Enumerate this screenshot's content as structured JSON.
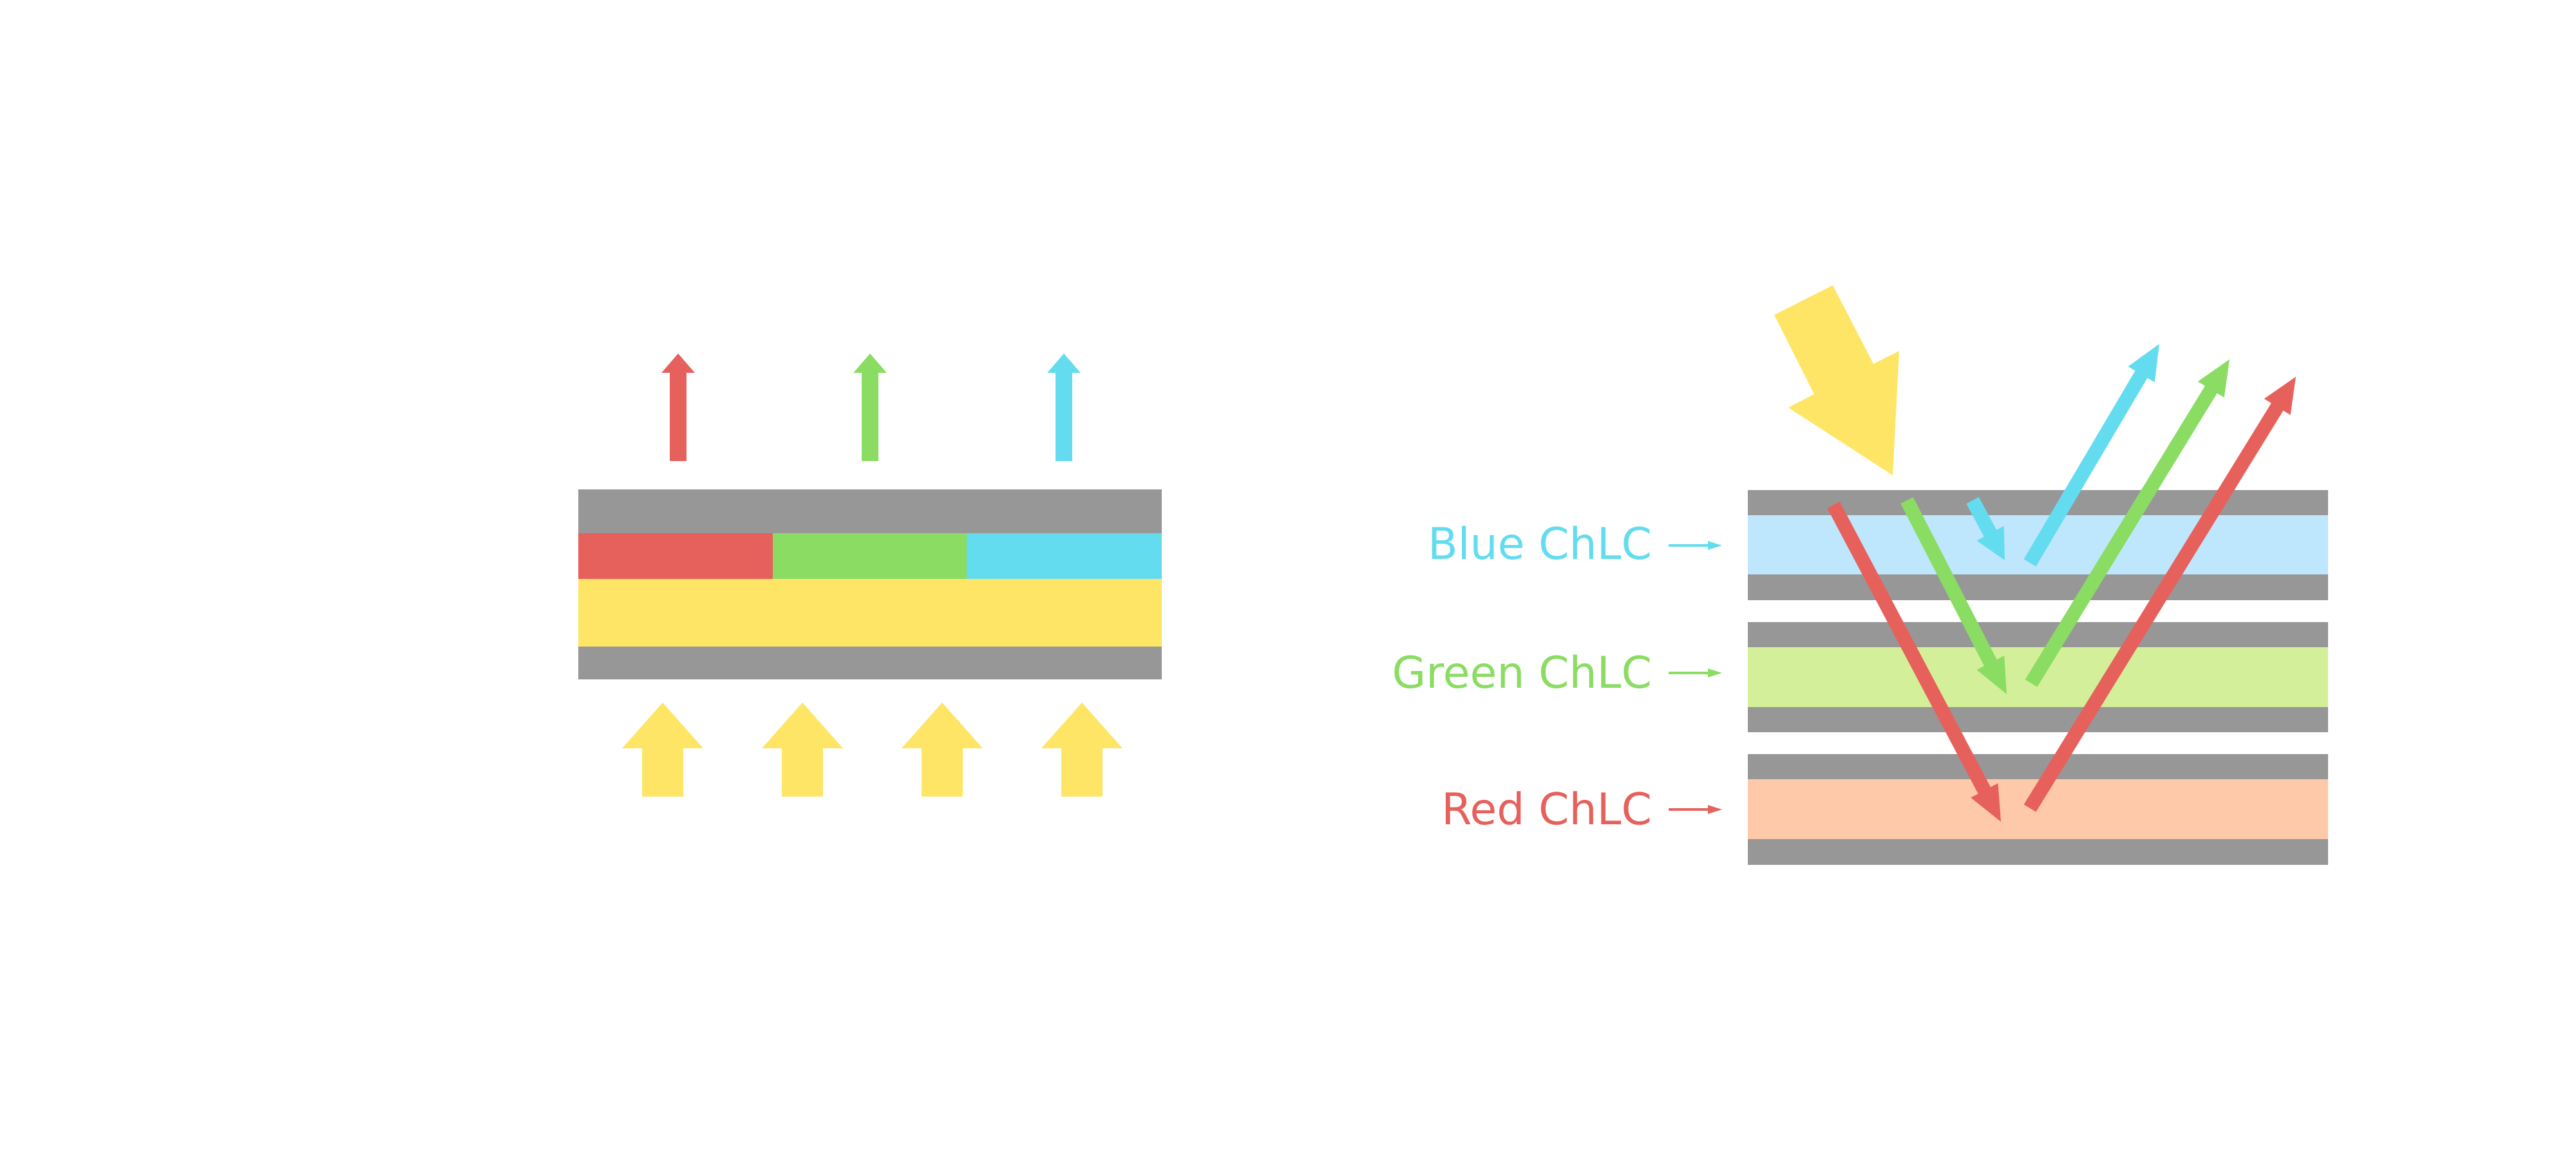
{
  "colors": {
    "red": "#E6615C",
    "green": "#8ADC63",
    "blue": "#64DCEF",
    "yellow": "#FEE566",
    "gray": "#979797",
    "blue_layer": "#BEE6FD",
    "green_layer": "#D3EF99",
    "red_layer": "#FDC9A8"
  },
  "right_diagram": {
    "labels": {
      "blue": "Blue ChLC",
      "green": "Green ChLC",
      "red": "Red ChLC"
    }
  }
}
